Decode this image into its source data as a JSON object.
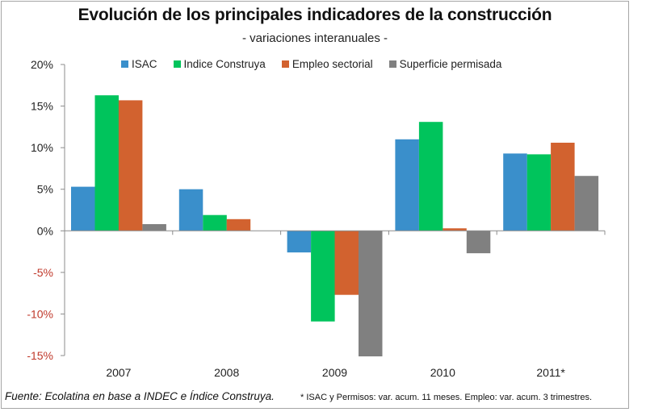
{
  "chart_data": {
    "type": "bar",
    "title": "Evolución de los principales indicadores de la construcción",
    "subtitle": "- variaciones interanuales -",
    "xlabel": "",
    "ylabel": "",
    "categories": [
      "2007",
      "2008",
      "2009",
      "2010",
      "2011*"
    ],
    "series": [
      {
        "name": "ISAC",
        "color": "#3a8fcb",
        "values": [
          5.3,
          5.0,
          -2.6,
          11.0,
          9.3
        ]
      },
      {
        "name": "Indice Construya",
        "color": "#00c45c",
        "values": [
          16.3,
          1.9,
          -10.9,
          13.1,
          9.2
        ]
      },
      {
        "name": "Empleo sectorial",
        "color": "#d2622f",
        "values": [
          15.7,
          1.4,
          -7.7,
          0.3,
          10.6
        ]
      },
      {
        "name": "Superficie permisada",
        "color": "#808080",
        "values": [
          0.8,
          0.0,
          -15.1,
          -2.7,
          6.6
        ]
      }
    ],
    "ylim": [
      -15,
      20
    ],
    "yticks": [
      20,
      15,
      10,
      5,
      0,
      -5,
      -10,
      -15
    ],
    "ytick_labels": [
      "20%",
      "15%",
      "10%",
      "5%",
      "0%",
      "-5%",
      "-10%",
      "-15%"
    ],
    "negative_tick_color": "#c0392b",
    "positive_tick_color": "#222222",
    "grid": false,
    "legend_position": "top"
  },
  "source_note": "Fuente: Ecolatina en base a INDEC e Índice Construya.",
  "footnote": "* ISAC y Permisos:  var. acum. 11 meses.  Empleo: var. acum. 3 trimestres."
}
